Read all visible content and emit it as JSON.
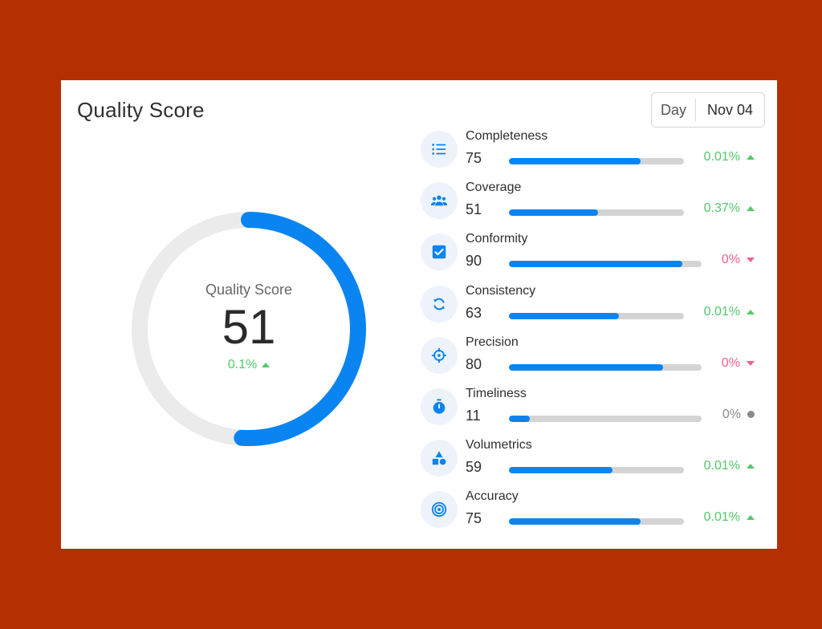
{
  "header": {
    "title": "Quality Score"
  },
  "date_picker": {
    "period": "Day",
    "date": "Nov 04"
  },
  "gauge": {
    "label": "Quality Score",
    "value": "51",
    "score": 51,
    "max": 100,
    "change": "0.1%",
    "trend": "up"
  },
  "metrics": [
    {
      "name": "Completeness",
      "value": "75",
      "score": 75,
      "change": "0.01%",
      "trend": "up",
      "icon": "list-icon"
    },
    {
      "name": "Coverage",
      "value": "51",
      "score": 51,
      "change": "0.37%",
      "trend": "up",
      "icon": "people-icon"
    },
    {
      "name": "Conformity",
      "value": "90",
      "score": 90,
      "change": "0%",
      "trend": "down",
      "icon": "checkbox-icon"
    },
    {
      "name": "Consistency",
      "value": "63",
      "score": 63,
      "change": "0.01%",
      "trend": "up",
      "icon": "sync-icon"
    },
    {
      "name": "Precision",
      "value": "80",
      "score": 80,
      "change": "0%",
      "trend": "down",
      "icon": "crosshair-icon"
    },
    {
      "name": "Timeliness",
      "value": "11",
      "score": 11,
      "change": "0%",
      "trend": "flat",
      "icon": "stopwatch-icon"
    },
    {
      "name": "Volumetrics",
      "value": "59",
      "score": 59,
      "change": "0.01%",
      "trend": "up",
      "icon": "shapes-icon"
    },
    {
      "name": "Accuracy",
      "value": "75",
      "score": 75,
      "change": "0.01%",
      "trend": "up",
      "icon": "target-icon"
    }
  ],
  "colors": {
    "background": "#B53000",
    "accent": "#0A84F0",
    "track": "#EBEBEB",
    "up": "#52C86A",
    "down": "#F0608A",
    "flat": "#8A8A8A"
  }
}
